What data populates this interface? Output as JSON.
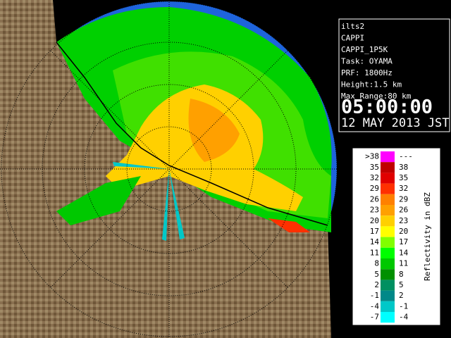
{
  "info": {
    "lines": [
      "ilts2",
      "CAPPI",
      "CAPPI_1P5K",
      "Task: OYAMA",
      "PRF: 1800Hz",
      "Height:1.5 km",
      "Max Range:80 km"
    ],
    "time": "05:00:00",
    "date": "12 MAY 2013 JST"
  },
  "legend": {
    "title": "Reflectivity in dBZ",
    "rows": [
      {
        "low": ">38",
        "high": "---",
        "color": "#ff00ff"
      },
      {
        "low": "35",
        "high": "38",
        "color": "#c00000"
      },
      {
        "low": "32",
        "high": "35",
        "color": "#e00000"
      },
      {
        "low": "29",
        "high": "32",
        "color": "#ff3000"
      },
      {
        "low": "26",
        "high": "29",
        "color": "#ff8000"
      },
      {
        "low": "23",
        "high": "26",
        "color": "#ffa000"
      },
      {
        "low": "20",
        "high": "23",
        "color": "#ffd000"
      },
      {
        "low": "17",
        "high": "20",
        "color": "#ffff00"
      },
      {
        "low": "14",
        "high": "17",
        "color": "#80ff00"
      },
      {
        "low": "11",
        "high": "14",
        "color": "#00ff00"
      },
      {
        "low": "8",
        "high": "11",
        "color": "#00c800"
      },
      {
        "low": "5",
        "high": "8",
        "color": "#009000"
      },
      {
        "low": "2",
        "high": "5",
        "color": "#009060"
      },
      {
        "low": "-1",
        "high": "2",
        "color": "#008888"
      },
      {
        "low": "-4",
        "high": "-1",
        "color": "#00c8c8"
      },
      {
        "low": "-7",
        "high": "-4",
        "color": "#00ffff"
      }
    ]
  }
}
